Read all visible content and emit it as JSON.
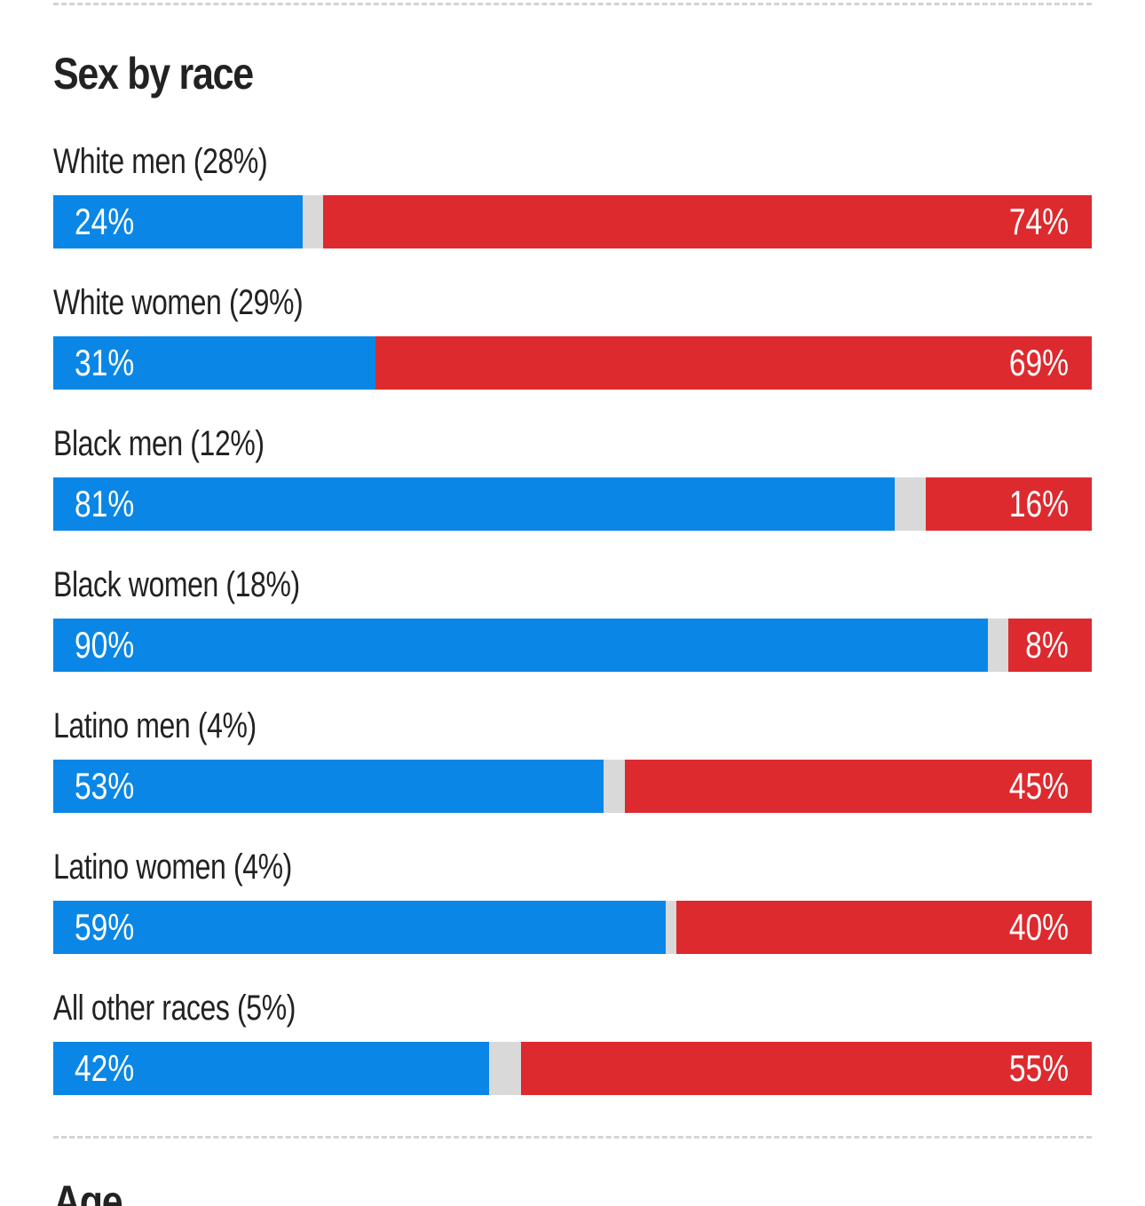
{
  "section_title": "Sex by race",
  "next_section_title": "Age",
  "colors": {
    "democrat": "#0a87e6",
    "republican": "#dd2a2e",
    "other": "#d9d9d9"
  },
  "chart_data": {
    "type": "bar",
    "orientation": "horizontal",
    "stacked": true,
    "title": "Sex by race",
    "xlim": [
      0,
      100
    ],
    "categories": [
      "White men (28%)",
      "White women (29%)",
      "Black men (12%)",
      "Black women (18%)",
      "Latino men (4%)",
      "Latino women (4%)",
      "All other races (5%)"
    ],
    "groups": [
      {
        "name": "White men",
        "share": "(28%)",
        "dem": 24,
        "rep": 74,
        "dem_label": "24%",
        "rep_label": "74%"
      },
      {
        "name": "White women",
        "share": "(29%)",
        "dem": 31,
        "rep": 69,
        "dem_label": "31%",
        "rep_label": "69%"
      },
      {
        "name": "Black men",
        "share": "(12%)",
        "dem": 81,
        "rep": 16,
        "dem_label": "81%",
        "rep_label": "16%"
      },
      {
        "name": "Black women",
        "share": "(18%)",
        "dem": 90,
        "rep": 8,
        "dem_label": "90%",
        "rep_label": "8%"
      },
      {
        "name": "Latino men",
        "share": "(4%)",
        "dem": 53,
        "rep": 45,
        "dem_label": "53%",
        "rep_label": "45%"
      },
      {
        "name": "Latino women",
        "share": "(4%)",
        "dem": 59,
        "rep": 40,
        "dem_label": "59%",
        "rep_label": "40%"
      },
      {
        "name": "All other races",
        "share": "(5%)",
        "dem": 42,
        "rep": 55,
        "dem_label": "42%",
        "rep_label": "55%"
      }
    ],
    "series": [
      {
        "values": [
          24,
          31,
          81,
          90,
          53,
          59,
          42
        ]
      },
      {
        "values": [
          74,
          69,
          16,
          8,
          45,
          40,
          55
        ]
      }
    ]
  }
}
